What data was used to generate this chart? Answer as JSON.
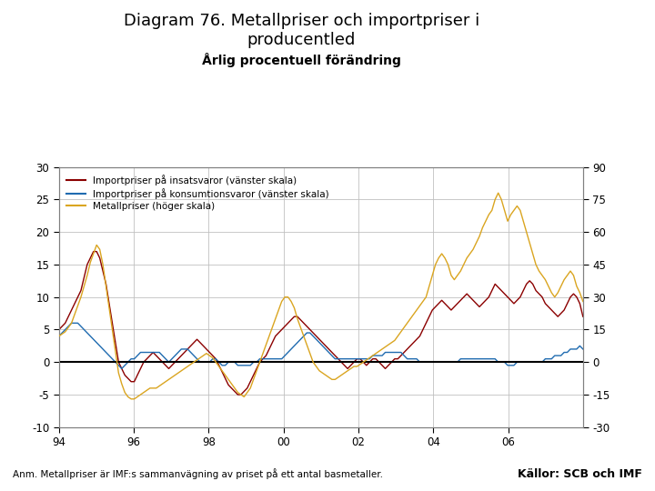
{
  "title_line1": "Diagram 76. Metallpriser och importpriser i",
  "title_line2": "producentled",
  "subtitle": "Årlig procentuell förändring",
  "title_fontsize": 13,
  "subtitle_fontsize": 10,
  "legend_labels": [
    "Importpriser på insatsvaror (vänster skala)",
    "Importpriser på konsumtionsvaror (vänster skala)",
    "Metallpriser (höger skala)"
  ],
  "line_colors": [
    "#8B0000",
    "#1F6BB0",
    "#DAA520"
  ],
  "left_ylim": [
    -10,
    30
  ],
  "right_ylim": [
    -30,
    90
  ],
  "left_yticks": [
    -10,
    -5,
    0,
    5,
    10,
    15,
    20,
    25,
    30
  ],
  "right_yticks": [
    -30,
    -15,
    0,
    15,
    30,
    45,
    60,
    75,
    90
  ],
  "xtick_labels": [
    "94",
    "96",
    "98",
    "00",
    "02",
    "04",
    "06"
  ],
  "footer_text": "Anm. Metallpriser är IMF:s sammanvägning av priset på ett antal basmetaller.",
  "footer_right": "Källor: SCB och IMF",
  "footer_bar_color": "#1F3A6E",
  "bg_color": "#FFFFFF",
  "plot_bg_color": "#FFFFFF",
  "zero_line_color": "#000000",
  "grid_color": "#C0C0C0"
}
